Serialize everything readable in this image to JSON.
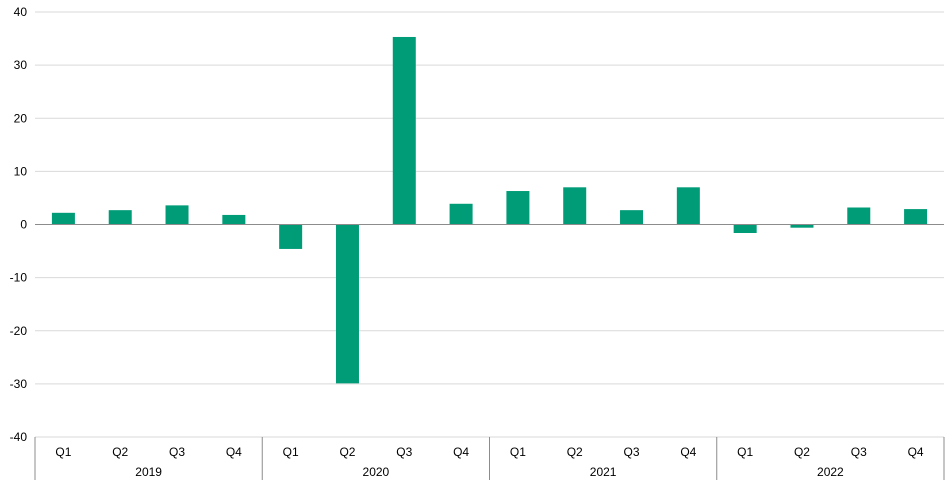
{
  "chart_data": {
    "type": "bar",
    "title": "",
    "xlabel": "",
    "ylabel": "",
    "ylim": [
      -40,
      40
    ],
    "yticks": [
      40,
      30,
      20,
      10,
      0,
      -10,
      -20,
      -30,
      -40
    ],
    "grid": true,
    "legend": "none",
    "bar_color": "#009B77",
    "groups": [
      {
        "label": "2019",
        "quarters": [
          "Q1",
          "Q2",
          "Q3",
          "Q4"
        ]
      },
      {
        "label": "2020",
        "quarters": [
          "Q1",
          "Q2",
          "Q3",
          "Q4"
        ]
      },
      {
        "label": "2021",
        "quarters": [
          "Q1",
          "Q2",
          "Q3",
          "Q4"
        ]
      },
      {
        "label": "2022",
        "quarters": [
          "Q1",
          "Q2",
          "Q3",
          "Q4"
        ]
      }
    ],
    "values": [
      2.2,
      2.7,
      3.6,
      1.8,
      -4.6,
      -29.9,
      35.3,
      3.9,
      6.3,
      7.0,
      2.7,
      7.0,
      -1.6,
      -0.6,
      3.2,
      2.9
    ]
  }
}
